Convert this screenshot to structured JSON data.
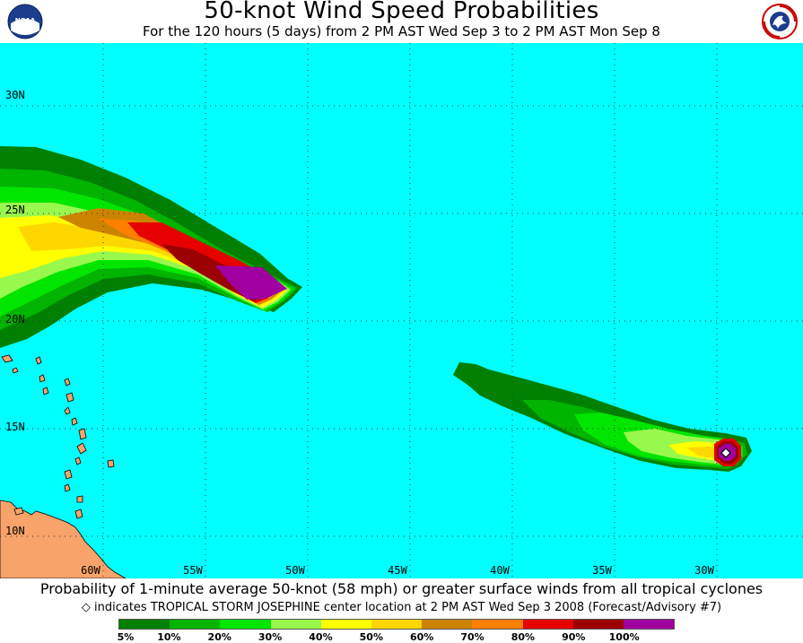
{
  "header": {
    "title": "50-knot Wind Speed Probabilities",
    "subtitle": "For the 120 hours (5 days) from 2 PM AST Wed Sep 3 to 2 PM AST Mon Sep 8"
  },
  "logos": {
    "noaa": "NOAA",
    "nws": "NATIONAL WEATHER SERVICE"
  },
  "map": {
    "ocean_color": "#00ffff",
    "land_color": "#f7a36a",
    "lat_labels": [
      "30N",
      "25N",
      "20N",
      "15N",
      "10N"
    ],
    "lon_labels": [
      "60W",
      "55W",
      "50W",
      "45W",
      "40W",
      "35W",
      "30W"
    ],
    "storm_marker": "Tropical Storm Josephine center"
  },
  "footer": {
    "line1": "Probability of 1-minute average 50-knot (58 mph) or greater surface winds from all tropical cyclones",
    "line2": "indicates TROPICAL STORM JOSEPHINE center location at 2 PM AST Wed Sep 3 2008 (Forecast/Advisory #7)",
    "marker_symbol": "◇"
  },
  "legend": {
    "colors": [
      "#008000",
      "#00b400",
      "#00e600",
      "#98f84c",
      "#ffff00",
      "#ffd700",
      "#cc8400",
      "#ff8000",
      "#e60000",
      "#9c0000",
      "#a000a0"
    ],
    "labels": [
      "5%",
      "10%",
      "20%",
      "30%",
      "40%",
      "50%",
      "60%",
      "70%",
      "80%",
      "90%",
      "100%"
    ]
  }
}
